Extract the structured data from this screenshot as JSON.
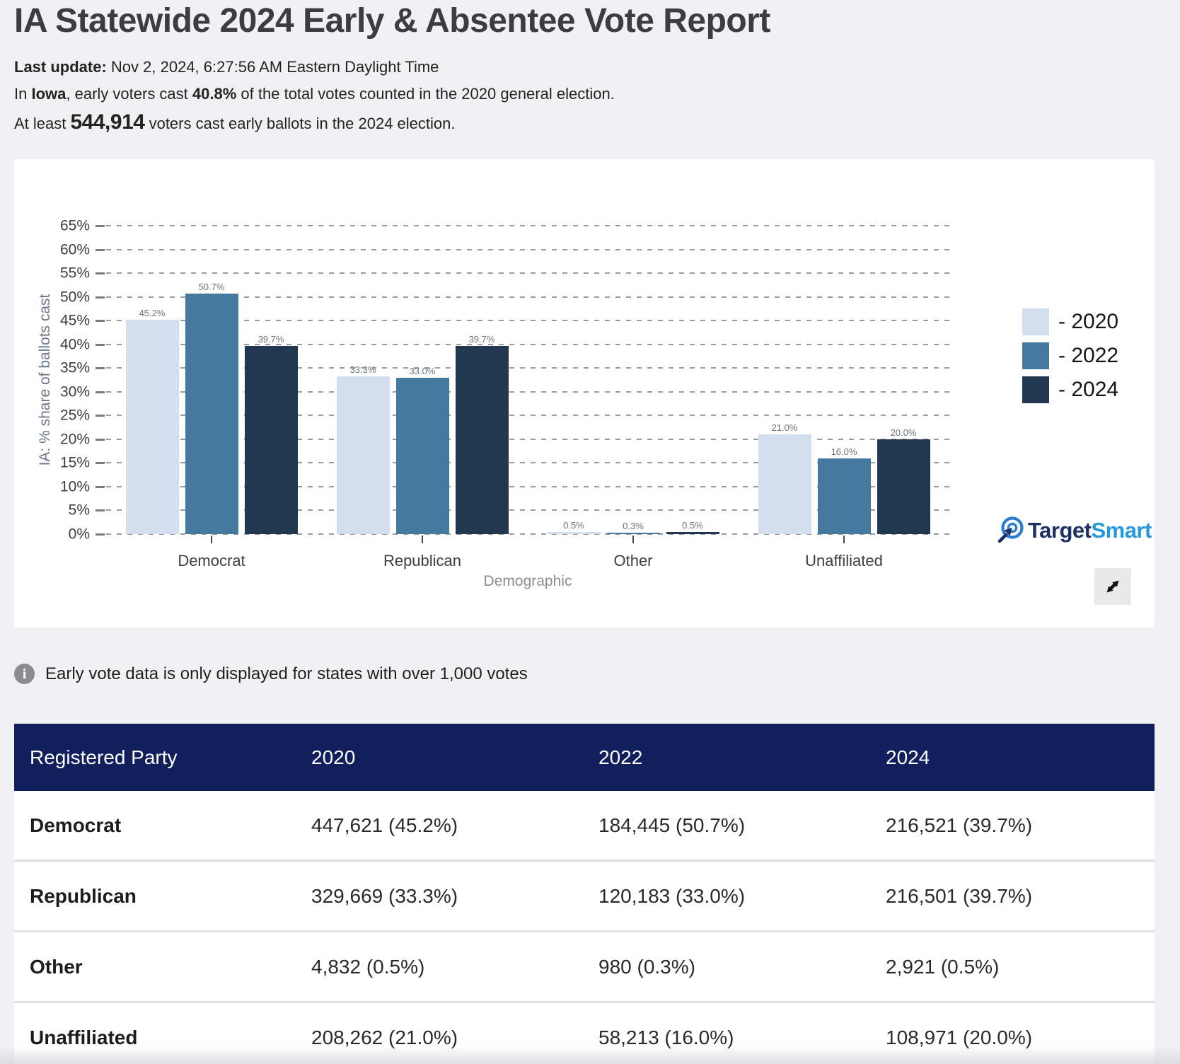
{
  "header": {
    "title": "IA Statewide 2024 Early & Absentee Vote Report",
    "last_update_label": "Last update:",
    "last_update_value": "Nov 2, 2024, 6:27:56 AM Eastern Daylight Time",
    "summary_2020": {
      "pre": "In",
      "state": "Iowa",
      "mid": ", early voters cast",
      "pct": "40.8%",
      "post": "of the total votes counted in the 2020 general election."
    },
    "summary_2024": {
      "pre": "At least",
      "count": "544,914",
      "post": "voters cast early ballots in the 2024 election."
    }
  },
  "chart_data": {
    "type": "bar",
    "title": "",
    "categories": [
      "Democrat",
      "Republican",
      "Other",
      "Unaffiliated"
    ],
    "series": [
      {
        "name": "2020",
        "color": "#d3dfee",
        "values": [
          45.2,
          33.3,
          0.5,
          21.0
        ]
      },
      {
        "name": "2022",
        "color": "#45799f",
        "values": [
          50.7,
          33.0,
          0.3,
          16.0
        ]
      },
      {
        "name": "2024",
        "color": "#21374f",
        "values": [
          39.7,
          39.7,
          0.5,
          20.0
        ]
      }
    ],
    "xlabel": "Demographic",
    "ylabel": "IA: % share of ballots cast",
    "ylim": [
      0,
      65
    ],
    "ytick_step": 5,
    "ytick_suffix": "%",
    "value_label_decimals": 1,
    "value_label_suffix": "%",
    "grid": true,
    "gridline_style": "dashed",
    "legend_position": "right",
    "legend_prefix": "- "
  },
  "branding": {
    "logo_part1": "Target",
    "logo_part2": "Smart",
    "logo_navy": "#1d2f63",
    "logo_blue": "#2599dd"
  },
  "info": {
    "icon_glyph": "i",
    "text": "Early vote data is only displayed for states with over 1,000 votes"
  },
  "table": {
    "header_bg": "#111f5c",
    "columns": [
      "Registered Party",
      "2020",
      "2022",
      "2024"
    ],
    "rows": [
      {
        "party": "Democrat",
        "y2020": "447,621 (45.2%)",
        "y2022": "184,445 (50.7%)",
        "y2024": "216,521 (39.7%)"
      },
      {
        "party": "Republican",
        "y2020": "329,669 (33.3%)",
        "y2022": "120,183 (33.0%)",
        "y2024": "216,501 (39.7%)"
      },
      {
        "party": "Other",
        "y2020": "4,832 (0.5%)",
        "y2022": "980 (0.3%)",
        "y2024": "2,921 (0.5%)"
      },
      {
        "party": "Unaffiliated",
        "y2020": "208,262 (21.0%)",
        "y2022": "58,213 (16.0%)",
        "y2024": "108,971 (20.0%)"
      }
    ]
  }
}
